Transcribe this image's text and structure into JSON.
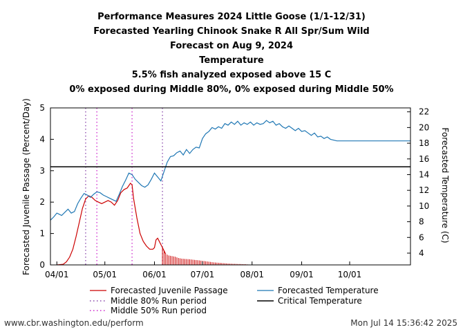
{
  "chart_data": {
    "type": "line",
    "titles": [
      "Performance Measures 2024 Little Goose (1/1-12/31)",
      "Forecasted Yearling Chinook Snake R All Spr/Sum Wild",
      "Forecast on Aug 9, 2024",
      "Temperature",
      "5.5% fish analyzed exposed above 15 C",
      "0% exposed during Middle 80%, 0% exposed during Middle 50%"
    ],
    "ylabel": "Forecasted Juvenile Passage (Percent/Day)",
    "y2label": "Forecasted Temperature (C)",
    "ylim": [
      0,
      5
    ],
    "y2lim": [
      2.5,
      22.5
    ],
    "yticks": [
      0,
      1,
      2,
      3,
      4,
      5
    ],
    "y2ticks": [
      4,
      6,
      8,
      10,
      12,
      14,
      16,
      18,
      20,
      22
    ],
    "xticks": [
      {
        "label": "04/01",
        "doy": 92
      },
      {
        "label": "05/01",
        "doy": 122
      },
      {
        "label": "06/01",
        "doy": 153
      },
      {
        "label": "07/01",
        "doy": 183
      },
      {
        "label": "08/01",
        "doy": 214
      },
      {
        "label": "09/01",
        "doy": 245
      },
      {
        "label": "10/01",
        "doy": 275
      }
    ],
    "xlim_doy": [
      88,
      313
    ],
    "critical_temperature": 15,
    "middle80": [
      110,
      158
    ],
    "middle50": [
      117,
      139
    ],
    "passage": {
      "name": "Forecasted Juvenile Passage",
      "color": "#cc0000",
      "points": [
        [
          92,
          0.0
        ],
        [
          96,
          0.02
        ],
        [
          98,
          0.1
        ],
        [
          100,
          0.25
        ],
        [
          102,
          0.5
        ],
        [
          104,
          0.9
        ],
        [
          106,
          1.35
        ],
        [
          108,
          1.8
        ],
        [
          110,
          2.1
        ],
        [
          112,
          2.2
        ],
        [
          114,
          2.15
        ],
        [
          116,
          2.05
        ],
        [
          118,
          2.0
        ],
        [
          120,
          1.95
        ],
        [
          122,
          2.0
        ],
        [
          124,
          2.05
        ],
        [
          126,
          2.0
        ],
        [
          128,
          1.9
        ],
        [
          130,
          2.05
        ],
        [
          132,
          2.3
        ],
        [
          134,
          2.4
        ],
        [
          136,
          2.45
        ],
        [
          138,
          2.6
        ],
        [
          139,
          2.55
        ],
        [
          140,
          2.1
        ],
        [
          142,
          1.5
        ],
        [
          144,
          1.0
        ],
        [
          146,
          0.75
        ],
        [
          148,
          0.6
        ],
        [
          150,
          0.5
        ],
        [
          152,
          0.5
        ],
        [
          153,
          0.55
        ],
        [
          154,
          0.8
        ],
        [
          155,
          0.85
        ],
        [
          156,
          0.75
        ],
        [
          158,
          0.55
        ],
        [
          160,
          0.35
        ],
        [
          162,
          0.3
        ],
        [
          164,
          0.28
        ],
        [
          166,
          0.26
        ],
        [
          168,
          0.22
        ],
        [
          170,
          0.2
        ],
        [
          172,
          0.19
        ],
        [
          175,
          0.18
        ],
        [
          178,
          0.16
        ],
        [
          180,
          0.15
        ],
        [
          183,
          0.13
        ],
        [
          186,
          0.11
        ],
        [
          190,
          0.08
        ],
        [
          195,
          0.06
        ],
        [
          200,
          0.04
        ],
        [
          205,
          0.03
        ],
        [
          210,
          0.02
        ],
        [
          215,
          0.0
        ],
        [
          220,
          0.0
        ]
      ]
    },
    "temperature": {
      "name": "Forecasted Temperature",
      "color": "#1f77b4",
      "points": [
        [
          88,
          8.2
        ],
        [
          90,
          8.6
        ],
        [
          92,
          9.1
        ],
        [
          93,
          9.0
        ],
        [
          95,
          8.8
        ],
        [
          97,
          9.2
        ],
        [
          99,
          9.6
        ],
        [
          101,
          9.1
        ],
        [
          103,
          9.3
        ],
        [
          105,
          10.3
        ],
        [
          107,
          11.0
        ],
        [
          109,
          11.6
        ],
        [
          111,
          11.4
        ],
        [
          113,
          11.1
        ],
        [
          115,
          11.5
        ],
        [
          117,
          11.8
        ],
        [
          119,
          11.7
        ],
        [
          121,
          11.4
        ],
        [
          123,
          11.2
        ],
        [
          125,
          11.0
        ],
        [
          127,
          10.8
        ],
        [
          129,
          10.6
        ],
        [
          131,
          11.5
        ],
        [
          133,
          12.5
        ],
        [
          135,
          13.3
        ],
        [
          137,
          14.2
        ],
        [
          139,
          14.0
        ],
        [
          141,
          13.4
        ],
        [
          143,
          13.0
        ],
        [
          145,
          12.6
        ],
        [
          147,
          12.4
        ],
        [
          149,
          12.7
        ],
        [
          151,
          13.4
        ],
        [
          153,
          14.2
        ],
        [
          155,
          13.7
        ],
        [
          157,
          13.2
        ],
        [
          159,
          14.4
        ],
        [
          161,
          15.6
        ],
        [
          163,
          16.3
        ],
        [
          165,
          16.4
        ],
        [
          167,
          16.8
        ],
        [
          169,
          17.0
        ],
        [
          171,
          16.5
        ],
        [
          173,
          17.2
        ],
        [
          175,
          16.7
        ],
        [
          177,
          17.2
        ],
        [
          179,
          17.5
        ],
        [
          181,
          17.4
        ],
        [
          183,
          18.6
        ],
        [
          185,
          19.2
        ],
        [
          187,
          19.5
        ],
        [
          189,
          20.0
        ],
        [
          191,
          19.8
        ],
        [
          193,
          20.1
        ],
        [
          195,
          19.9
        ],
        [
          197,
          20.5
        ],
        [
          199,
          20.3
        ],
        [
          201,
          20.7
        ],
        [
          203,
          20.4
        ],
        [
          205,
          20.8
        ],
        [
          207,
          20.3
        ],
        [
          209,
          20.6
        ],
        [
          211,
          20.4
        ],
        [
          213,
          20.7
        ],
        [
          215,
          20.3
        ],
        [
          217,
          20.6
        ],
        [
          219,
          20.4
        ],
        [
          221,
          20.5
        ],
        [
          223,
          20.9
        ],
        [
          225,
          20.6
        ],
        [
          227,
          20.8
        ],
        [
          229,
          20.3
        ],
        [
          231,
          20.5
        ],
        [
          233,
          20.1
        ],
        [
          235,
          19.9
        ],
        [
          237,
          20.2
        ],
        [
          239,
          19.9
        ],
        [
          241,
          19.6
        ],
        [
          243,
          19.9
        ],
        [
          245,
          19.5
        ],
        [
          247,
          19.6
        ],
        [
          249,
          19.3
        ],
        [
          251,
          19.0
        ],
        [
          253,
          19.3
        ],
        [
          255,
          18.8
        ],
        [
          257,
          18.9
        ],
        [
          259,
          18.6
        ],
        [
          261,
          18.8
        ],
        [
          263,
          18.5
        ],
        [
          265,
          18.4
        ],
        [
          267,
          18.3
        ],
        [
          313,
          18.3
        ]
      ]
    },
    "legend": {
      "passage": "Forecasted Juvenile Passage",
      "temperature": "Forecasted Temperature",
      "middle80": "Middle 80% Run period",
      "critical": "Critical Temperature",
      "middle50": "Middle 50% Run period"
    },
    "colors": {
      "passage": "#cc0000",
      "temperature": "#1f77b4",
      "middle80": "#8844aa",
      "middle50": "#cc22cc",
      "critical": "#000000"
    }
  },
  "footer": {
    "left": "www.cbr.washington.edu/perform",
    "right": "Mon Jul 14 15:36:42 2025"
  }
}
